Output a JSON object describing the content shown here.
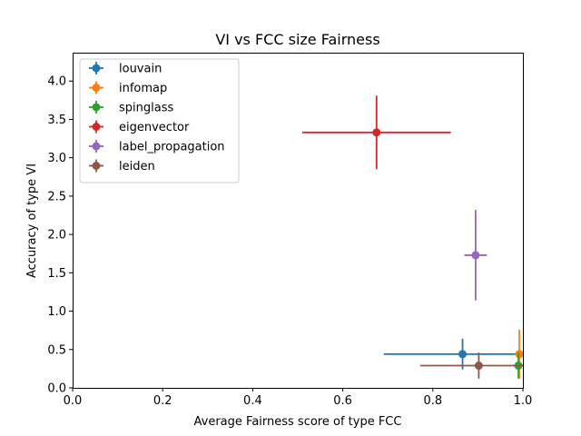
{
  "chart_data": {
    "type": "scatter",
    "title": "VI vs FCC size Fairness",
    "xlabel": "Average Fairness score of type FCC",
    "ylabel": "Accuracy of type VI",
    "xlim": [
      0.0,
      1.0
    ],
    "ylim": [
      0.0,
      4.37
    ],
    "xticks": [
      "0.0",
      "0.2",
      "0.4",
      "0.6",
      "0.8",
      "1.0"
    ],
    "yticks": [
      "0.0",
      "0.5",
      "1.0",
      "1.5",
      "2.0",
      "2.5",
      "3.0",
      "3.5",
      "4.0"
    ],
    "grid": false,
    "legend_position": "top-left",
    "series": [
      {
        "name": "louvain",
        "color": "#1f77b4",
        "x": 0.866,
        "y": 0.44,
        "xerr": 0.175,
        "yerr": 0.2
      },
      {
        "name": "infomap",
        "color": "#ff7f0e",
        "x": 0.992,
        "y": 0.44,
        "xerr": 0.005,
        "yerr": 0.32
      },
      {
        "name": "spinglass",
        "color": "#2ca02c",
        "x": 0.99,
        "y": 0.29,
        "xerr": 0.01,
        "yerr": 0.17
      },
      {
        "name": "eigenvector",
        "color": "#d62728",
        "x": 0.675,
        "y": 3.33,
        "xerr": 0.165,
        "yerr": 0.48
      },
      {
        "name": "label_propagation",
        "color": "#9467bd",
        "x": 0.895,
        "y": 1.73,
        "xerr": 0.025,
        "yerr": 0.59
      },
      {
        "name": "leiden",
        "color": "#8c564b",
        "x": 0.902,
        "y": 0.29,
        "xerr": 0.13,
        "yerr": 0.17
      }
    ]
  }
}
